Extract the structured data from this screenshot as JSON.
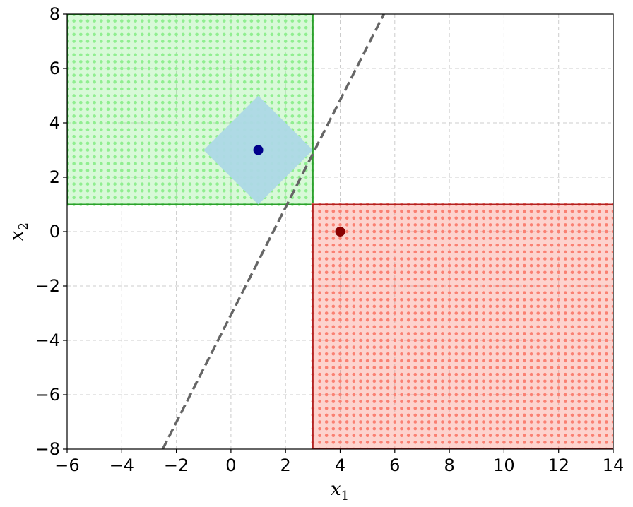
{
  "chart_data": {
    "type": "scatter",
    "title": "",
    "xlabel": "x",
    "xlabel_sub": "1",
    "ylabel": "x",
    "ylabel_sub": "2",
    "xlim": [
      -6,
      14
    ],
    "ylim": [
      -8,
      8
    ],
    "xticks": [
      -6,
      -4,
      -2,
      0,
      2,
      4,
      6,
      8,
      10,
      12,
      14
    ],
    "yticks": [
      -8,
      -6,
      -4,
      -2,
      0,
      2,
      4,
      6,
      8
    ],
    "xtick_labels": [
      "−6",
      "−4",
      "−2",
      "0",
      "2",
      "4",
      "6",
      "8",
      "10",
      "12",
      "14"
    ],
    "ytick_labels": [
      "−8",
      "−6",
      "−4",
      "−2",
      "0",
      "2",
      "4",
      "6",
      "8"
    ],
    "grid": true,
    "regions": [
      {
        "name": "green-region",
        "x_range": [
          -6,
          3
        ],
        "y_range": [
          1,
          8
        ],
        "fill": "#90ee90",
        "edge": "#2ca02c",
        "dot_spacing": 0.25
      },
      {
        "name": "red-region",
        "x_range": [
          3,
          14
        ],
        "y_range": [
          -8,
          1
        ],
        "fill": "#fa8072",
        "edge": "#b22222",
        "dot_spacing": 0.25
      }
    ],
    "diamond": {
      "vertices": [
        [
          1,
          5
        ],
        [
          3,
          3
        ],
        [
          1,
          1
        ],
        [
          -1,
          3
        ]
      ],
      "fill": "#add8e6"
    },
    "points": [
      {
        "x": 1,
        "y": 3,
        "color": "#00008b"
      },
      {
        "x": 4,
        "y": 0,
        "color": "#8b0000"
      }
    ],
    "boundary_line": {
      "style": "dashed",
      "color": "#666666",
      "x": [
        -2.5,
        5.6
      ],
      "y": [
        -8,
        8
      ]
    }
  }
}
